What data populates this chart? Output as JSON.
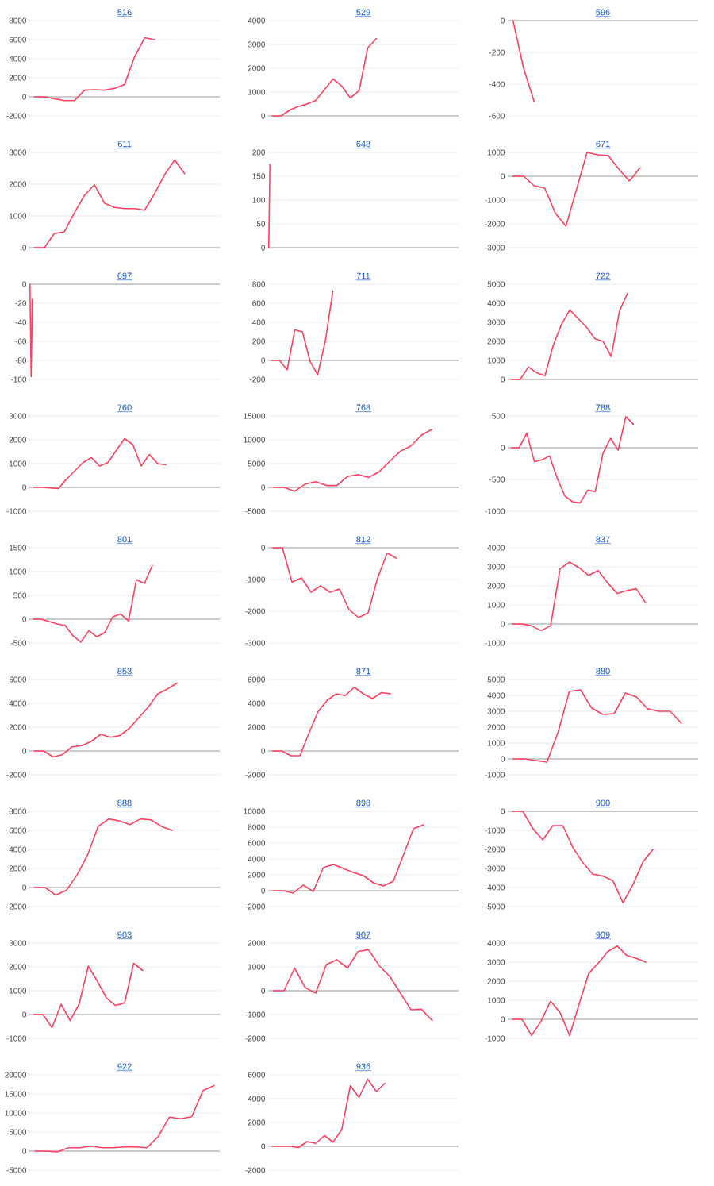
{
  "chart_data": [
    {
      "type": "line",
      "title": "516",
      "categories": [
        null,
        null,
        null,
        null,
        null,
        null,
        null,
        null,
        null,
        null,
        null,
        null,
        null,
        null,
        null,
        null,
        null,
        null,
        null
      ],
      "values": [
        0,
        0,
        -200,
        -400,
        -400,
        700,
        750,
        700,
        900,
        1300,
        4200,
        6200,
        6000,
        null,
        null,
        null,
        null,
        null,
        null
      ],
      "color": "#ff4060",
      "ylim": [
        -2000,
        8000
      ],
      "yticks": [
        -2000,
        0,
        2000,
        4000,
        6000,
        8000
      ],
      "grid": "y",
      "tick_labels": "y"
    },
    {
      "type": "line",
      "title": "529",
      "categories": [
        null,
        null,
        null,
        null,
        null,
        null,
        null,
        null,
        null,
        null,
        null,
        null,
        null,
        null,
        null,
        null,
        null,
        null,
        null,
        null,
        null,
        null
      ],
      "values": [
        0,
        0,
        250,
        400,
        500,
        650,
        1100,
        1550,
        1250,
        750,
        1050,
        2850,
        3250,
        null,
        null,
        null,
        null,
        null,
        null,
        null,
        null,
        null
      ],
      "color": "#ff4060",
      "ylim": [
        0,
        4000
      ],
      "yticks": [
        0,
        1000,
        2000,
        3000,
        4000
      ],
      "grid": "y",
      "tick_labels": "y"
    },
    {
      "type": "line",
      "title": "596",
      "categories": [
        null,
        null,
        null,
        null,
        null,
        null,
        null,
        null,
        null,
        null,
        null,
        null,
        null,
        null,
        null,
        null,
        null,
        null
      ],
      "values": [
        0,
        -300,
        -510,
        null,
        null,
        null,
        null,
        null,
        null,
        null,
        null,
        null,
        null,
        null,
        null,
        null,
        null,
        null
      ],
      "color": "#ff4060",
      "ylim": [
        -600,
        0
      ],
      "yticks": [
        -600,
        -400,
        -200,
        0
      ],
      "grid": "y",
      "tick_labels": "y"
    },
    {
      "type": "line",
      "title": "611",
      "categories": [
        null,
        null,
        null,
        null,
        null,
        null,
        null,
        null,
        null,
        null,
        null,
        null,
        null,
        null,
        null,
        null,
        null,
        null,
        null
      ],
      "values": [
        0,
        0,
        450,
        500,
        1100,
        1650,
        1980,
        1400,
        1270,
        1230,
        1230,
        1180,
        1700,
        2300,
        2760,
        2330,
        null,
        null,
        null
      ],
      "color": "#ff4060",
      "ylim": [
        0,
        3000
      ],
      "yticks": [
        0,
        1000,
        2000,
        3000
      ],
      "grid": "y",
      "tick_labels": "y"
    },
    {
      "type": "line",
      "title": "648",
      "categories": [
        null,
        null,
        null,
        null,
        null,
        null,
        null,
        null,
        null,
        null,
        null,
        null,
        null,
        null,
        null,
        null,
        null,
        null,
        null,
        null,
        null,
        null,
        null,
        null,
        null,
        null,
        null,
        null,
        null,
        null,
        null,
        null,
        null,
        null,
        null,
        null,
        null,
        null,
        null,
        null,
        null,
        null,
        null,
        null,
        null,
        null,
        null,
        null,
        null,
        null,
        null,
        null,
        null,
        null,
        null,
        null,
        null,
        null,
        null,
        null,
        null,
        null,
        null,
        null,
        null,
        null,
        null,
        null,
        null,
        null,
        null,
        null,
        null,
        null,
        null,
        null,
        null,
        null,
        null,
        null,
        null,
        null,
        null,
        null,
        null,
        null,
        null,
        null,
        null,
        null,
        null,
        null,
        null,
        null,
        null,
        null,
        null,
        null,
        null,
        null,
        null,
        null,
        null,
        null,
        null,
        null,
        null,
        null,
        null,
        null,
        null,
        null,
        null,
        null,
        null,
        null,
        null,
        null,
        null,
        null,
        null,
        null,
        null,
        null,
        null,
        null,
        null,
        null,
        null,
        null,
        null,
        null,
        null,
        null,
        null,
        null,
        null,
        null,
        null,
        null,
        null,
        null,
        null,
        null,
        null,
        null,
        null,
        null,
        null,
        null,
        null,
        null,
        null,
        null,
        null,
        null,
        null,
        null,
        null,
        null
      ],
      "values": [
        0,
        175,
        null,
        null,
        null,
        null,
        null,
        null,
        null,
        null,
        null,
        null,
        null,
        null,
        null,
        null,
        null,
        null,
        null,
        null,
        null,
        null,
        null,
        null,
        null,
        null,
        null,
        null,
        null,
        null,
        null,
        null,
        null,
        null,
        null,
        null,
        null,
        null,
        null,
        null,
        null,
        null,
        null,
        null,
        null,
        null,
        null,
        null,
        null,
        null,
        null,
        null,
        null,
        null,
        null,
        null,
        null,
        null,
        null,
        null,
        null,
        null,
        null,
        null,
        null,
        null,
        null,
        null,
        null,
        null,
        null,
        null,
        null,
        null,
        null,
        null,
        null,
        null,
        null,
        null,
        null,
        null,
        null,
        null,
        null,
        null,
        null,
        null,
        null,
        null,
        null,
        null,
        null,
        null,
        null,
        null,
        null,
        null,
        null,
        null,
        null,
        null,
        null,
        null,
        null,
        null,
        null,
        null,
        null,
        null,
        null,
        null,
        null,
        null,
        null,
        null,
        null,
        null,
        null,
        null,
        null,
        null,
        null,
        null,
        null,
        null,
        null,
        null,
        null,
        null,
        null,
        null,
        null,
        null,
        null,
        null,
        null,
        null,
        null,
        null,
        null,
        null,
        null,
        null,
        null,
        null,
        null,
        null,
        null,
        null,
        null,
        null,
        null,
        null,
        null,
        null,
        null,
        null,
        null,
        null
      ],
      "color": "#ff4060",
      "ylim": [
        0,
        200
      ],
      "yticks": [
        0,
        50,
        100,
        150,
        200
      ],
      "grid": "y",
      "tick_labels": "y"
    },
    {
      "type": "line",
      "title": "671",
      "categories": [
        null,
        null,
        null,
        null,
        null,
        null,
        null,
        null,
        null,
        null,
        null,
        null,
        null,
        null,
        null,
        null,
        null,
        null
      ],
      "values": [
        0,
        0,
        -400,
        -500,
        -1550,
        -2100,
        -550,
        1000,
        900,
        870,
        300,
        -200,
        350,
        null,
        null,
        null,
        null,
        null
      ],
      "color": "#ff4060",
      "ylim": [
        -3000,
        1000
      ],
      "yticks": [
        -3000,
        -2000,
        -1000,
        0,
        1000
      ],
      "grid": "y",
      "tick_labels": "y"
    },
    {
      "type": "line",
      "title": "697",
      "categories": [
        null,
        null,
        null,
        null,
        null,
        null,
        null,
        null,
        null,
        null,
        null,
        null,
        null,
        null,
        null,
        null,
        null,
        null,
        null,
        null,
        null,
        null,
        null,
        null,
        null,
        null,
        null,
        null,
        null,
        null,
        null,
        null,
        null,
        null,
        null,
        null,
        null,
        null,
        null,
        null,
        null,
        null,
        null,
        null,
        null,
        null,
        null,
        null,
        null,
        null,
        null,
        null,
        null,
        null,
        null,
        null,
        null,
        null,
        null,
        null,
        null,
        null,
        null,
        null,
        null,
        null,
        null,
        null,
        null,
        null,
        null,
        null,
        null,
        null,
        null,
        null,
        null,
        null,
        null,
        null,
        null,
        null,
        null,
        null,
        null,
        null,
        null,
        null,
        null,
        null,
        null,
        null,
        null,
        null,
        null,
        null,
        null,
        null,
        null,
        null,
        null,
        null,
        null,
        null,
        null,
        null,
        null,
        null,
        null,
        null,
        null,
        null,
        null,
        null,
        null,
        null,
        null,
        null,
        null,
        null,
        null,
        null,
        null,
        null,
        null,
        null,
        null,
        null,
        null,
        null,
        null,
        null,
        null,
        null,
        null,
        null,
        null,
        null,
        null,
        null,
        null,
        null,
        null,
        null,
        null,
        null,
        null,
        null,
        null,
        null,
        null,
        null,
        null,
        null,
        null,
        null,
        null,
        null,
        null,
        null
      ],
      "values": [
        0,
        -97,
        -16,
        null,
        null,
        null,
        null,
        null,
        null,
        null,
        null,
        null,
        null,
        null,
        null,
        null,
        null,
        null,
        null,
        null,
        null,
        null,
        null,
        null,
        null,
        null,
        null,
        null,
        null,
        null,
        null,
        null,
        null,
        null,
        null,
        null,
        null,
        null,
        null,
        null,
        null,
        null,
        null,
        null,
        null,
        null,
        null,
        null,
        null,
        null,
        null,
        null,
        null,
        null,
        null,
        null,
        null,
        null,
        null,
        null,
        null,
        null,
        null,
        null,
        null,
        null,
        null,
        null,
        null,
        null,
        null,
        null,
        null,
        null,
        null,
        null,
        null,
        null,
        null,
        null,
        null,
        null,
        null,
        null,
        null,
        null,
        null,
        null,
        null,
        null,
        null,
        null,
        null,
        null,
        null,
        null,
        null,
        null,
        null,
        null,
        null,
        null,
        null,
        null,
        null,
        null,
        null,
        null,
        null,
        null,
        null,
        null,
        null,
        null,
        null,
        null,
        null,
        null,
        null,
        null,
        null,
        null,
        null,
        null,
        null,
        null,
        null,
        null,
        null,
        null,
        null,
        null,
        null,
        null,
        null,
        null,
        null,
        null,
        null,
        null,
        null,
        null,
        null,
        null,
        null,
        null,
        null,
        null,
        null,
        null,
        null,
        null,
        null,
        null,
        null,
        null,
        null,
        null,
        null,
        null
      ],
      "color": "#ff4060",
      "ylim": [
        -100,
        0
      ],
      "yticks": [
        -100,
        -80,
        -60,
        -40,
        -20,
        0
      ],
      "grid": "y",
      "tick_labels": "y"
    },
    {
      "type": "line",
      "title": "711",
      "categories": [
        null,
        null,
        null,
        null,
        null,
        null,
        null,
        null,
        null,
        null,
        null,
        null,
        null,
        null,
        null,
        null,
        null,
        null,
        null,
        null,
        null,
        null,
        null,
        null,
        null
      ],
      "values": [
        0,
        0,
        -100,
        320,
        300,
        -10,
        -150,
        200,
        730,
        null,
        null,
        null,
        null,
        null,
        null,
        null,
        null,
        null,
        null,
        null,
        null,
        null,
        null,
        null,
        null
      ],
      "color": "#ff4060",
      "ylim": [
        -200,
        800
      ],
      "yticks": [
        -200,
        0,
        200,
        400,
        600,
        800
      ],
      "grid": "y",
      "tick_labels": "y"
    },
    {
      "type": "line",
      "title": "722",
      "categories": [
        null,
        null,
        null,
        null,
        null,
        null,
        null,
        null,
        null,
        null,
        null,
        null,
        null,
        null,
        null,
        null,
        null,
        null,
        null,
        null,
        null,
        null,
        null
      ],
      "values": [
        0,
        0,
        650,
        350,
        200,
        1800,
        2900,
        3650,
        3200,
        2750,
        2150,
        2000,
        1200,
        3600,
        4550,
        null,
        null,
        null,
        null,
        null,
        null,
        null,
        null
      ],
      "color": "#ff4060",
      "ylim": [
        0,
        5000
      ],
      "yticks": [
        0,
        1000,
        2000,
        3000,
        4000,
        5000
      ],
      "grid": "y",
      "tick_labels": "y"
    },
    {
      "type": "line",
      "title": "760",
      "categories": [
        null,
        null,
        null,
        null,
        null,
        null,
        null,
        null,
        null,
        null,
        null,
        null,
        null,
        null,
        null,
        null,
        null,
        null,
        null,
        null,
        null,
        null,
        null
      ],
      "values": [
        0,
        0,
        -20,
        -50,
        350,
        700,
        1050,
        1250,
        900,
        1050,
        1550,
        2050,
        1800,
        900,
        1380,
        1000,
        950,
        null,
        null,
        null,
        null,
        null,
        null
      ],
      "color": "#ff4060",
      "ylim": [
        -1000,
        3000
      ],
      "yticks": [
        -1000,
        0,
        1000,
        2000,
        3000
      ],
      "grid": "y",
      "tick_labels": "y"
    },
    {
      "type": "line",
      "title": "768",
      "categories": [
        null,
        null,
        null,
        null,
        null,
        null,
        null,
        null,
        null,
        null,
        null,
        null,
        null,
        null,
        null,
        null,
        null,
        null
      ],
      "values": [
        0,
        0,
        -800,
        700,
        1200,
        400,
        400,
        2300,
        2700,
        2100,
        3300,
        5500,
        7600,
        8700,
        11000,
        12200,
        null,
        null
      ],
      "color": "#ff4060",
      "ylim": [
        -5000,
        15000
      ],
      "yticks": [
        -5000,
        0,
        5000,
        10000,
        15000
      ],
      "grid": "y",
      "tick_labels": "y"
    },
    {
      "type": "line",
      "title": "788",
      "categories": [
        null,
        null,
        null,
        null,
        null,
        null,
        null,
        null,
        null,
        null,
        null,
        null,
        null,
        null,
        null,
        null,
        null,
        null,
        null,
        null,
        null,
        null,
        null,
        null,
        null
      ],
      "values": [
        0,
        0,
        230,
        -220,
        -190,
        -130,
        -480,
        -760,
        -850,
        -870,
        -670,
        -690,
        -90,
        150,
        -40,
        490,
        370,
        null,
        null,
        null,
        null,
        null,
        null,
        null,
        null
      ],
      "color": "#ff4060",
      "ylim": [
        -1000,
        500
      ],
      "yticks": [
        -1000,
        -500,
        0,
        500
      ],
      "grid": "y",
      "tick_labels": "y"
    },
    {
      "type": "line",
      "title": "801",
      "categories": [
        null,
        null,
        null,
        null,
        null,
        null,
        null,
        null,
        null,
        null,
        null,
        null,
        null,
        null,
        null,
        null,
        null,
        null,
        null,
        null,
        null,
        null,
        null,
        null
      ],
      "values": [
        0,
        0,
        -50,
        -100,
        -130,
        -350,
        -480,
        -240,
        -370,
        -280,
        50,
        110,
        -40,
        830,
        750,
        1130,
        null,
        null,
        null,
        null,
        null,
        null,
        null,
        null
      ],
      "color": "#ff4060",
      "ylim": [
        -500,
        1500
      ],
      "yticks": [
        -500,
        0,
        500,
        1000,
        1500
      ],
      "grid": "y",
      "tick_labels": "y"
    },
    {
      "type": "line",
      "title": "812",
      "categories": [
        null,
        null,
        null,
        null,
        null,
        null,
        null,
        null,
        null,
        null,
        null,
        null,
        null,
        null,
        null,
        null,
        null,
        null,
        null,
        null
      ],
      "values": [
        0,
        0,
        -1080,
        -950,
        -1400,
        -1200,
        -1400,
        -1300,
        -1950,
        -2200,
        -2050,
        -950,
        -170,
        -330,
        null,
        null,
        null,
        null,
        null,
        null
      ],
      "color": "#ff4060",
      "ylim": [
        -3000,
        0
      ],
      "yticks": [
        -3000,
        -2000,
        -1000,
        0
      ],
      "grid": "y",
      "tick_labels": "y"
    },
    {
      "type": "line",
      "title": "837",
      "categories": [
        null,
        null,
        null,
        null,
        null,
        null,
        null,
        null,
        null,
        null,
        null,
        null,
        null,
        null,
        null,
        null,
        null,
        null,
        null,
        null
      ],
      "values": [
        0,
        0,
        -100,
        -350,
        -100,
        2900,
        3250,
        2950,
        2550,
        2800,
        2150,
        1600,
        1750,
        1850,
        1100,
        null,
        null,
        null,
        null,
        null
      ],
      "color": "#ff4060",
      "ylim": [
        -1000,
        4000
      ],
      "yticks": [
        -1000,
        0,
        1000,
        2000,
        3000,
        4000
      ],
      "grid": "y",
      "tick_labels": "y"
    },
    {
      "type": "line",
      "title": "853",
      "categories": [
        null,
        null,
        null,
        null,
        null,
        null,
        null,
        null,
        null,
        null,
        null,
        null,
        null,
        null,
        null,
        null,
        null,
        null,
        null,
        null
      ],
      "values": [
        0,
        0,
        -500,
        -300,
        350,
        450,
        800,
        1400,
        1150,
        1300,
        1900,
        2800,
        3700,
        4800,
        5200,
        5700,
        null,
        null,
        null,
        null
      ],
      "color": "#ff4060",
      "ylim": [
        -2000,
        6000
      ],
      "yticks": [
        -2000,
        0,
        2000,
        4000,
        6000
      ],
      "grid": "y",
      "tick_labels": "y"
    },
    {
      "type": "line",
      "title": "871",
      "categories": [
        null,
        null,
        null,
        null,
        null,
        null,
        null,
        null,
        null,
        null,
        null,
        null,
        null,
        null,
        null,
        null,
        null,
        null,
        null,
        null,
        null
      ],
      "values": [
        0,
        0,
        -400,
        -400,
        1500,
        3300,
        4250,
        4800,
        4650,
        5350,
        4800,
        4400,
        4900,
        4800,
        null,
        null,
        null,
        null,
        null,
        null,
        null
      ],
      "color": "#ff4060",
      "ylim": [
        -2000,
        6000
      ],
      "yticks": [
        -2000,
        0,
        2000,
        4000,
        6000
      ],
      "grid": "y",
      "tick_labels": "y"
    },
    {
      "type": "line",
      "title": "880",
      "categories": [
        null,
        null,
        null,
        null,
        null,
        null,
        null,
        null,
        null,
        null,
        null,
        null,
        null,
        null,
        null,
        null,
        null
      ],
      "values": [
        0,
        0,
        -100,
        -200,
        1700,
        4250,
        4350,
        3200,
        2800,
        2850,
        4150,
        3900,
        3150,
        3000,
        3000,
        2250,
        null
      ],
      "color": "#ff4060",
      "ylim": [
        -1000,
        5000
      ],
      "yticks": [
        -1000,
        0,
        1000,
        2000,
        3000,
        4000,
        5000
      ],
      "grid": "y",
      "tick_labels": "y"
    },
    {
      "type": "line",
      "title": "888",
      "categories": [
        null,
        null,
        null,
        null,
        null,
        null,
        null,
        null,
        null,
        null,
        null,
        null,
        null,
        null,
        null,
        null,
        null,
        null
      ],
      "values": [
        0,
        0,
        -800,
        -300,
        1300,
        3400,
        6400,
        7200,
        7000,
        6600,
        7200,
        7100,
        6400,
        6000,
        null,
        null,
        null,
        null
      ],
      "color": "#ff4060",
      "ylim": [
        -2000,
        8000
      ],
      "yticks": [
        -2000,
        0,
        2000,
        4000,
        6000,
        8000
      ],
      "grid": "y",
      "tick_labels": "y"
    },
    {
      "type": "line",
      "title": "898",
      "categories": [
        null,
        null,
        null,
        null,
        null,
        null,
        null,
        null,
        null,
        null,
        null,
        null,
        null,
        null,
        null,
        null,
        null,
        null,
        null
      ],
      "values": [
        0,
        0,
        -300,
        700,
        -100,
        2900,
        3300,
        2800,
        2300,
        1900,
        1000,
        600,
        1200,
        4500,
        7800,
        8300,
        null,
        null,
        null
      ],
      "color": "#ff4060",
      "ylim": [
        -2000,
        10000
      ],
      "yticks": [
        -2000,
        0,
        2000,
        4000,
        6000,
        8000,
        10000
      ],
      "grid": "y",
      "tick_labels": "y"
    },
    {
      "type": "line",
      "title": "900",
      "categories": [
        null,
        null,
        null,
        null,
        null,
        null,
        null,
        null,
        null,
        null,
        null,
        null,
        null,
        null,
        null,
        null,
        null,
        null,
        null
      ],
      "values": [
        0,
        0,
        -900,
        -1500,
        -750,
        -750,
        -1900,
        -2700,
        -3300,
        -3400,
        -3650,
        -4800,
        -3850,
        -2650,
        -2000,
        null,
        null,
        null,
        null
      ],
      "color": "#ff4060",
      "ylim": [
        -5000,
        0
      ],
      "yticks": [
        -5000,
        -4000,
        -3000,
        -2000,
        -1000,
        0
      ],
      "grid": "y",
      "tick_labels": "y"
    },
    {
      "type": "line",
      "title": "903",
      "categories": [
        null,
        null,
        null,
        null,
        null,
        null,
        null,
        null,
        null,
        null,
        null,
        null,
        null,
        null,
        null,
        null,
        null,
        null,
        null,
        null,
        null
      ],
      "values": [
        0,
        0,
        -550,
        430,
        -250,
        450,
        2030,
        1400,
        700,
        380,
        480,
        2150,
        1850,
        null,
        null,
        null,
        null,
        null,
        null,
        null,
        null
      ],
      "color": "#ff4060",
      "ylim": [
        -1000,
        3000
      ],
      "yticks": [
        -1000,
        0,
        1000,
        2000,
        3000
      ],
      "grid": "y",
      "tick_labels": "y"
    },
    {
      "type": "line",
      "title": "907",
      "categories": [
        null,
        null,
        null,
        null,
        null,
        null,
        null,
        null,
        null,
        null,
        null,
        null,
        null,
        null,
        null,
        null,
        null,
        null
      ],
      "values": [
        0,
        0,
        950,
        130,
        -100,
        1100,
        1300,
        950,
        1650,
        1720,
        1050,
        600,
        -100,
        -800,
        -780,
        -1250,
        null,
        null
      ],
      "color": "#ff4060",
      "ylim": [
        -2000,
        2000
      ],
      "yticks": [
        -2000,
        -1000,
        0,
        1000,
        2000
      ],
      "grid": "y",
      "tick_labels": "y"
    },
    {
      "type": "line",
      "title": "909",
      "categories": [
        null,
        null,
        null,
        null,
        null,
        null,
        null,
        null,
        null,
        null,
        null,
        null,
        null,
        null,
        null,
        null,
        null,
        null,
        null,
        null
      ],
      "values": [
        0,
        0,
        -850,
        -100,
        950,
        350,
        -850,
        800,
        2400,
        2950,
        3550,
        3850,
        3350,
        3200,
        3000,
        null,
        null,
        null,
        null,
        null
      ],
      "color": "#ff4060",
      "ylim": [
        -1000,
        4000
      ],
      "yticks": [
        -1000,
        0,
        1000,
        2000,
        3000,
        4000
      ],
      "grid": "y",
      "tick_labels": "y"
    },
    {
      "type": "line",
      "title": "922",
      "categories": [
        null,
        null,
        null,
        null,
        null,
        null,
        null,
        null,
        null,
        null,
        null,
        null,
        null,
        null,
        null,
        null,
        null
      ],
      "values": [
        0,
        0,
        -200,
        900,
        900,
        1300,
        900,
        900,
        1100,
        1100,
        900,
        3800,
        8900,
        8500,
        9000,
        15900,
        17200
      ],
      "color": "#ff4060",
      "ylim": [
        -5000,
        20000
      ],
      "yticks": [
        -5000,
        0,
        5000,
        10000,
        15000,
        20000
      ],
      "grid": "y",
      "tick_labels": "y"
    },
    {
      "type": "line",
      "title": "936",
      "categories": [
        null,
        null,
        null,
        null,
        null,
        null,
        null,
        null,
        null,
        null,
        null,
        null,
        null,
        null,
        null,
        null,
        null,
        null,
        null,
        null,
        null,
        null
      ],
      "values": [
        0,
        0,
        0,
        -100,
        400,
        250,
        900,
        350,
        1400,
        5100,
        4100,
        5650,
        4600,
        5300,
        null,
        null,
        null,
        null,
        null,
        null,
        null,
        null
      ],
      "color": "#ff4060",
      "ylim": [
        -2000,
        6000
      ],
      "yticks": [
        -2000,
        0,
        2000,
        4000,
        6000
      ],
      "grid": "y",
      "tick_labels": "y"
    }
  ]
}
